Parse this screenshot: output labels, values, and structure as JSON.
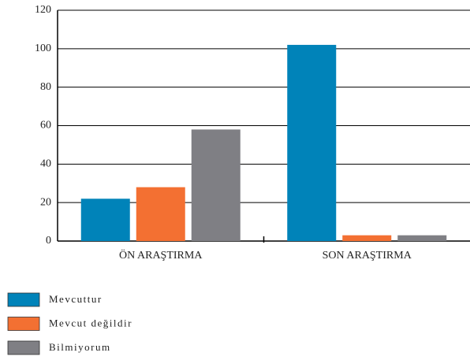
{
  "chart_data": {
    "type": "bar",
    "categories": [
      "ÖN ARAŞTIRMA",
      "SON ARAŞTIRMA"
    ],
    "series": [
      {
        "name": "Mevcuttur",
        "color": "#0083b9",
        "values": [
          22,
          102
        ]
      },
      {
        "name": "Mevcut değildir",
        "color": "#f37032",
        "values": [
          28,
          3
        ]
      },
      {
        "name": "Bilmiyorum",
        "color": "#7f7f84",
        "values": [
          58,
          3
        ]
      }
    ],
    "ylim": [
      0,
      120
    ],
    "yticks": [
      0,
      20,
      40,
      60,
      80,
      100,
      120
    ],
    "grid": true,
    "legend": "bottom-left"
  }
}
